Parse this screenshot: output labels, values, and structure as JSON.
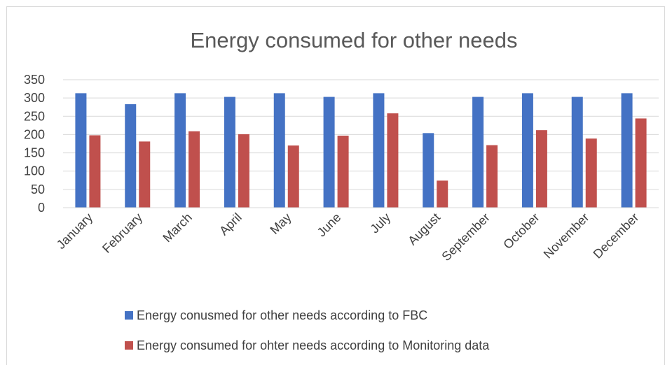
{
  "chart_data": {
    "type": "bar",
    "title": "Energy consumed for other needs",
    "xlabel": "",
    "ylabel": "",
    "categories": [
      "January",
      "February",
      "March",
      "April",
      "May",
      "June",
      "July",
      "August",
      "September",
      "October",
      "November",
      "December"
    ],
    "series": [
      {
        "name": "Energy conusmed for other needs according to FBC",
        "color": "#4472c4",
        "values": [
          313,
          283,
          313,
          303,
          313,
          303,
          313,
          204,
          303,
          313,
          303,
          313
        ]
      },
      {
        "name": "Energy consumed for ohter needs according to Monitoring data",
        "color": "#c0504d",
        "values": [
          198,
          181,
          209,
          201,
          170,
          197,
          258,
          74,
          171,
          212,
          189,
          244
        ]
      }
    ],
    "ylim": [
      0,
      350
    ],
    "yticks": [
      0,
      50,
      100,
      150,
      200,
      250,
      300,
      350
    ],
    "grid": true,
    "legend_position": "bottom"
  }
}
